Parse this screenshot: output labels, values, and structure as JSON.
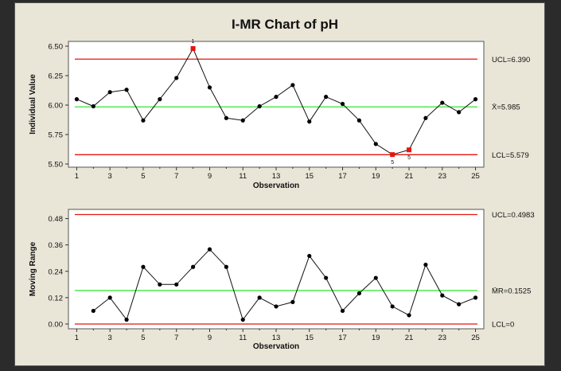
{
  "chart_data": {
    "title": "I-MR Chart of pH",
    "panels": [
      {
        "type": "line",
        "name": "individuals",
        "ylabel": "Individual Value",
        "xlabel": "Observation",
        "ylim": [
          5.5,
          6.5
        ],
        "yticks": [
          "5.50",
          "5.75",
          "6.00",
          "6.25",
          "6.50"
        ],
        "ytick_values": [
          5.5,
          5.75,
          6.0,
          6.25,
          6.5
        ],
        "xticks": [
          "1",
          "3",
          "5",
          "7",
          "9",
          "11",
          "13",
          "15",
          "17",
          "19",
          "21",
          "23",
          "25"
        ],
        "x": [
          1,
          2,
          3,
          4,
          5,
          6,
          7,
          8,
          9,
          10,
          11,
          12,
          13,
          14,
          15,
          16,
          17,
          18,
          19,
          20,
          21,
          22,
          23,
          24,
          25
        ],
        "values": [
          6.05,
          5.99,
          6.11,
          6.13,
          5.87,
          6.05,
          6.23,
          6.48,
          6.15,
          5.89,
          5.87,
          5.99,
          6.07,
          6.17,
          5.86,
          6.07,
          6.01,
          5.87,
          5.67,
          5.58,
          5.62,
          5.89,
          6.02,
          5.94,
          6.05
        ],
        "out_of_control": [
          8,
          20,
          21
        ],
        "flags": [
          {
            "x": 8,
            "label": "1"
          },
          {
            "x": 20,
            "label": "5"
          },
          {
            "x": 21,
            "label": "5"
          }
        ],
        "limits": {
          "ucl": {
            "value": 6.39,
            "label": "UCL=6.390"
          },
          "center": {
            "value": 5.985,
            "label": "X̄=5.985"
          },
          "lcl": {
            "value": 5.579,
            "label": "LCL=5.579"
          }
        }
      },
      {
        "type": "line",
        "name": "moving-range",
        "ylabel": "Moving Range",
        "xlabel": "Observation",
        "ylim": [
          0,
          0.5
        ],
        "yticks": [
          "0.00",
          "0.12",
          "0.24",
          "0.36",
          "0.48"
        ],
        "ytick_values": [
          0,
          0.12,
          0.24,
          0.36,
          0.48
        ],
        "xticks": [
          "1",
          "3",
          "5",
          "7",
          "9",
          "11",
          "13",
          "15",
          "17",
          "19",
          "21",
          "23",
          "25"
        ],
        "x": [
          2,
          3,
          4,
          5,
          6,
          7,
          8,
          9,
          10,
          11,
          12,
          13,
          14,
          15,
          16,
          17,
          18,
          19,
          20,
          21,
          22,
          23,
          24,
          25
        ],
        "values": [
          0.06,
          0.12,
          0.02,
          0.26,
          0.18,
          0.18,
          0.26,
          0.34,
          0.26,
          0.02,
          0.12,
          0.08,
          0.1,
          0.31,
          0.21,
          0.06,
          0.14,
          0.21,
          0.08,
          0.04,
          0.27,
          0.13,
          0.09,
          0.12
        ],
        "limits": {
          "ucl": {
            "value": 0.4983,
            "label": "UCL=0.4983"
          },
          "center": {
            "value": 0.1525,
            "label": "M̄R=0.1525"
          },
          "lcl": {
            "value": 0,
            "label": "LCL=0"
          }
        }
      }
    ],
    "colors": {
      "limit": "#e8140c",
      "center": "#2ee82e",
      "point": "#000000",
      "flagged": "#e8140c"
    }
  }
}
